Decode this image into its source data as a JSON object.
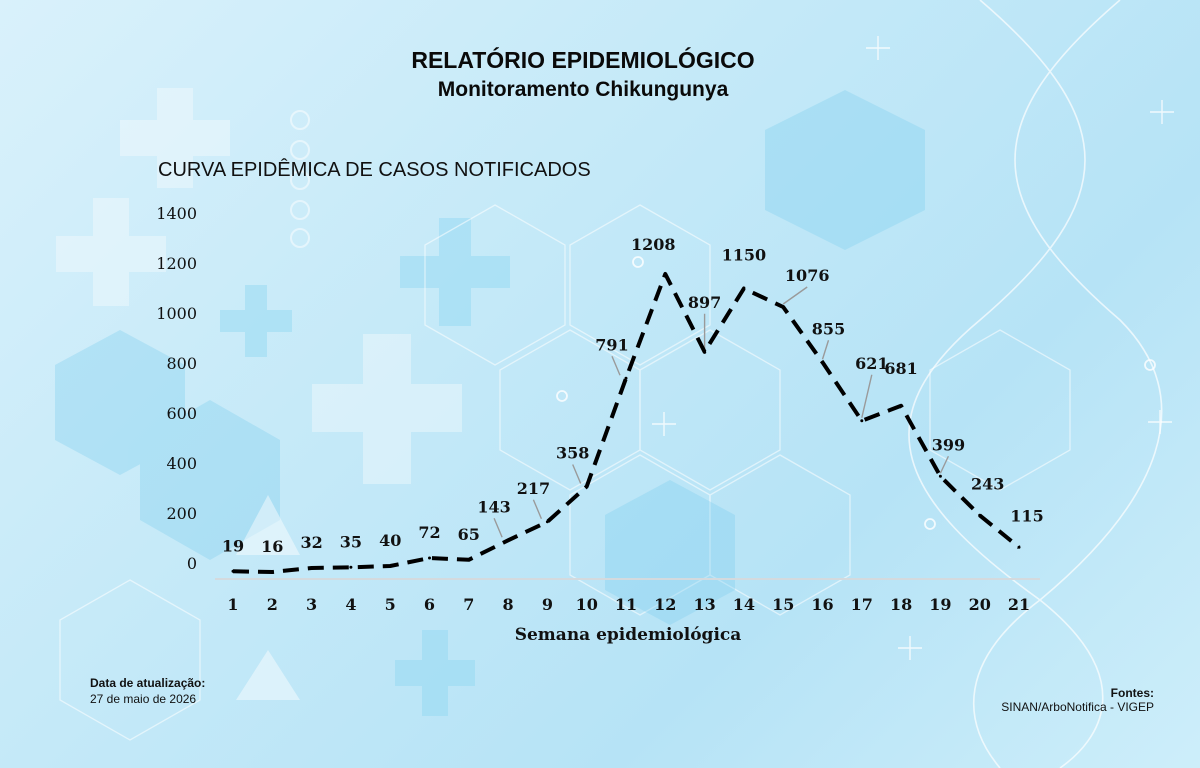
{
  "report": {
    "title": "RELATÓRIO EPIDEMIOLÓGICO",
    "subtitle": "Monitoramento Chikungunya"
  },
  "footer": {
    "update_label": "Data de atualização:",
    "update_value": "27 de maio de 2026",
    "sources_label": "Fontes:",
    "sources_value": "SINAN/ArboNotifica - VIGEP"
  },
  "chart_data": {
    "type": "line",
    "title": "CURVA EPIDÊMICA DE CASOS NOTIFICADOS",
    "xlabel": "Semana epidemiológica",
    "ylabel": "",
    "x": [
      1,
      2,
      3,
      4,
      5,
      6,
      7,
      8,
      9,
      10,
      11,
      12,
      13,
      14,
      15,
      16,
      17,
      18,
      19,
      20,
      21
    ],
    "values": [
      19,
      16,
      32,
      35,
      40,
      72,
      65,
      143,
      217,
      358,
      791,
      1208,
      897,
      1150,
      1076,
      855,
      621,
      681,
      399,
      243,
      115
    ],
    "ylim": [
      0,
      1400
    ],
    "yticks": [
      0,
      200,
      400,
      600,
      800,
      1000,
      1200,
      1400
    ],
    "grid": false,
    "line_style": "dashed",
    "line_color": "#000000"
  }
}
